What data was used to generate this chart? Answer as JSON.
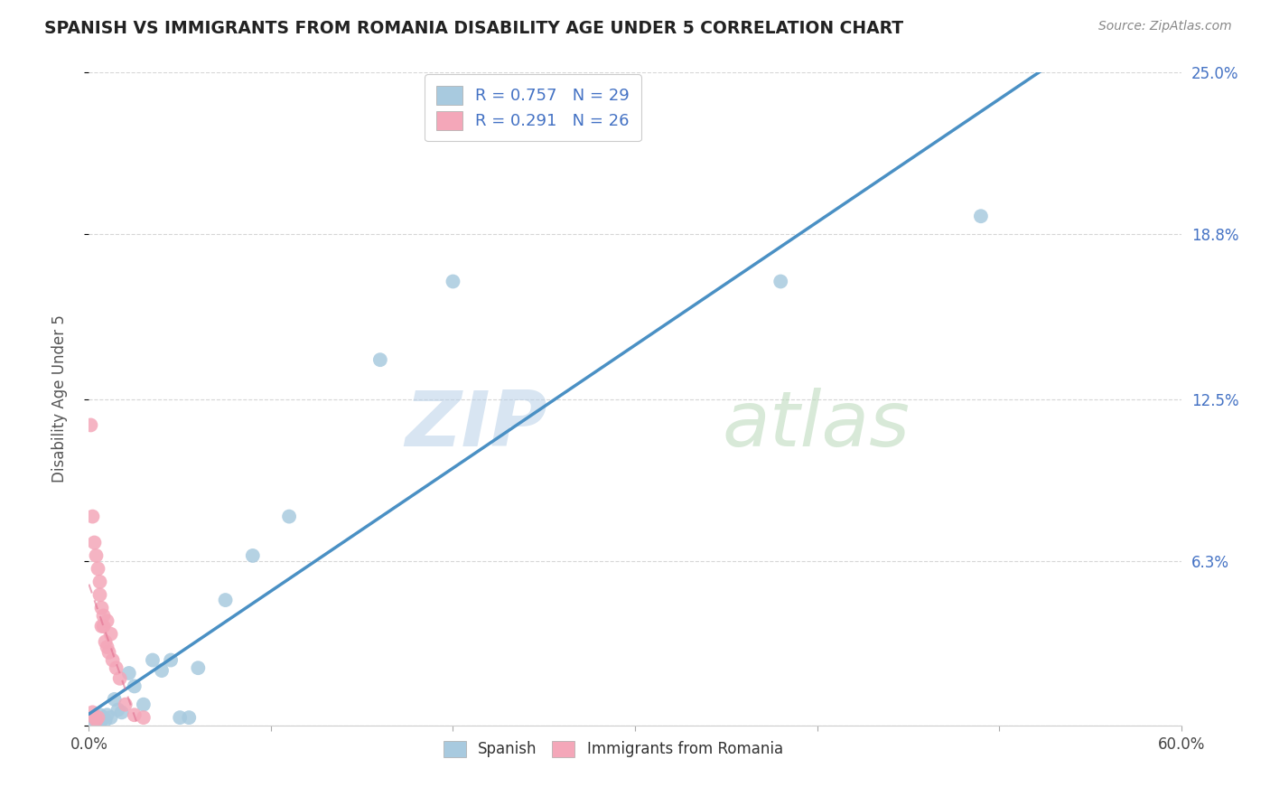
{
  "title": "SPANISH VS IMMIGRANTS FROM ROMANIA DISABILITY AGE UNDER 5 CORRELATION CHART",
  "source": "Source: ZipAtlas.com",
  "ylabel": "Disability Age Under 5",
  "xlim": [
    0.0,
    0.6
  ],
  "ylim": [
    0.0,
    0.25
  ],
  "ytick_positions": [
    0.0,
    0.063,
    0.125,
    0.188,
    0.25
  ],
  "ytick_labels": [
    "",
    "6.3%",
    "12.5%",
    "18.8%",
    "25.0%"
  ],
  "spanish_r": 0.757,
  "spanish_n": 29,
  "romania_r": 0.291,
  "romania_n": 26,
  "spanish_color": "#a8cadf",
  "romania_color": "#f4a7b9",
  "spanish_line_color": "#4a90c4",
  "romania_line_color": "#e07090",
  "spanish_x": [
    0.002,
    0.003,
    0.004,
    0.005,
    0.006,
    0.007,
    0.008,
    0.009,
    0.01,
    0.012,
    0.014,
    0.016,
    0.018,
    0.022,
    0.025,
    0.03,
    0.035,
    0.04,
    0.045,
    0.05,
    0.055,
    0.06,
    0.075,
    0.09,
    0.11,
    0.16,
    0.2,
    0.38,
    0.49
  ],
  "spanish_y": [
    0.002,
    0.003,
    0.002,
    0.003,
    0.004,
    0.002,
    0.003,
    0.002,
    0.004,
    0.003,
    0.01,
    0.006,
    0.005,
    0.02,
    0.015,
    0.008,
    0.025,
    0.021,
    0.025,
    0.003,
    0.003,
    0.022,
    0.048,
    0.065,
    0.08,
    0.14,
    0.17,
    0.17,
    0.195
  ],
  "romania_x": [
    0.001,
    0.002,
    0.002,
    0.003,
    0.003,
    0.004,
    0.004,
    0.005,
    0.005,
    0.006,
    0.006,
    0.007,
    0.007,
    0.008,
    0.008,
    0.009,
    0.01,
    0.01,
    0.011,
    0.012,
    0.013,
    0.015,
    0.017,
    0.02,
    0.025,
    0.03
  ],
  "romania_y": [
    0.115,
    0.005,
    0.08,
    0.003,
    0.07,
    0.002,
    0.065,
    0.003,
    0.06,
    0.055,
    0.05,
    0.045,
    0.038,
    0.042,
    0.038,
    0.032,
    0.04,
    0.03,
    0.028,
    0.035,
    0.025,
    0.022,
    0.018,
    0.008,
    0.004,
    0.003
  ]
}
